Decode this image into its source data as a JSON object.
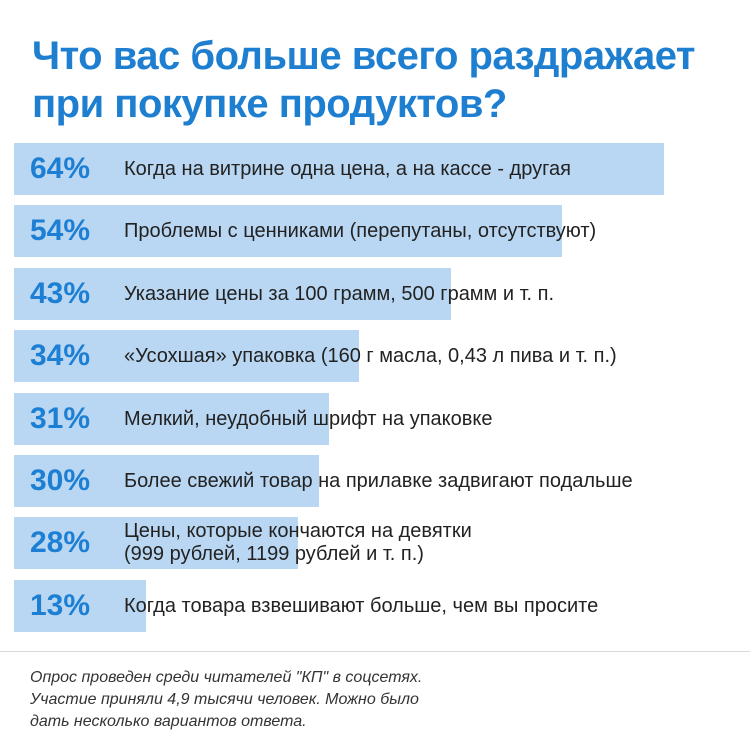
{
  "colors": {
    "title": "#1e7fd0",
    "bar": "#b9d7f2",
    "percent": "#1d7fd3",
    "label": "#222222",
    "footnote": "#333333"
  },
  "chart_data": {
    "type": "bar",
    "orientation": "horizontal",
    "title": "Что вас больше всего раздражает при покупке продуктов?",
    "unit": "%",
    "categories": [
      "Когда на витрине одна цена, а на кассе - другая",
      "Проблемы с ценниками (перепутаны, отсутствуют)",
      "Указание цены за 100 грамм, 500 грамм и т. п.",
      "«Усохшая» упаковка (160 г масла, 0,43 л пива и т. п.)",
      "Мелкий, неудобный шрифт на упаковке",
      "Более свежий товар на прилавке задвигают подальше",
      "Цены, которые кончаются на девятки\n(999 рублей, 1199 рублей и т. п.)",
      "Когда товара взвешивают больше, чем вы просите"
    ],
    "values": [
      64,
      54,
      43,
      34,
      31,
      30,
      28,
      13
    ],
    "value_labels": [
      "64%",
      "54%",
      "43%",
      "34%",
      "31%",
      "30%",
      "28%",
      "13%"
    ],
    "xlim": [
      0,
      64
    ],
    "grid": false,
    "legend": "none"
  },
  "footnote": {
    "lines": [
      "Опрос проведен среди читателей \"КП\" в соцсетях.",
      "Участие приняли 4,9 тысячи человек. Можно было",
      "дать несколько вариантов ответа."
    ]
  }
}
